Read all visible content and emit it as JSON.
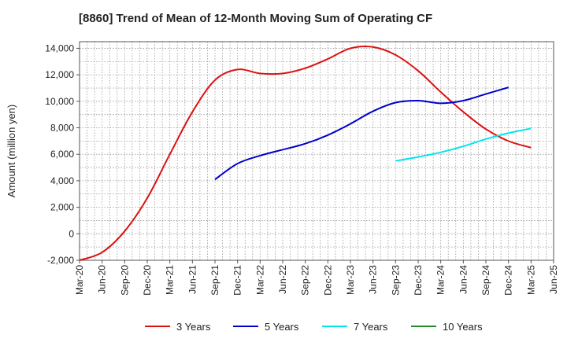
{
  "chart_data": {
    "type": "line",
    "title": "[8860]  Trend of Mean of 12-Month Moving Sum of Operating CF",
    "xlabel": "",
    "ylabel": "Amount (million yen)",
    "ylim": [
      -2000,
      14500
    ],
    "yticks": [
      -2000,
      0,
      2000,
      4000,
      6000,
      8000,
      10000,
      12000,
      14000
    ],
    "ytick_labels": [
      "-2,000",
      "0",
      "2,000",
      "4,000",
      "6,000",
      "8,000",
      "10,000",
      "12,000",
      "14,000"
    ],
    "x_categories": [
      "Mar-20",
      "Jun-20",
      "Sep-20",
      "Dec-20",
      "Mar-21",
      "Jun-21",
      "Sep-21",
      "Dec-21",
      "Mar-22",
      "Jun-22",
      "Sep-22",
      "Dec-22",
      "Mar-23",
      "Jun-23",
      "Sep-23",
      "Dec-23",
      "Mar-24",
      "Jun-24",
      "Sep-24",
      "Dec-24",
      "Mar-25",
      "Jun-25"
    ],
    "grid": true,
    "legend_position": "bottom",
    "series": [
      {
        "name": "3 Years",
        "color": "#dd1111",
        "start_index": 0,
        "values": [
          -2000,
          -1400,
          200,
          2700,
          6000,
          9200,
          11600,
          12400,
          12100,
          12100,
          12500,
          13200,
          14000,
          14100,
          13500,
          12300,
          10700,
          9200,
          7900,
          7000,
          6500
        ]
      },
      {
        "name": "5 Years",
        "color": "#0000cc",
        "start_index": 6,
        "values": [
          4100,
          5300,
          5900,
          6350,
          6800,
          7450,
          8300,
          9250,
          9900,
          10050,
          9850,
          10050,
          10550,
          11050
        ]
      },
      {
        "name": "7 Years",
        "color": "#00e5ee",
        "start_index": 14,
        "values": [
          5500,
          5800,
          6150,
          6600,
          7150,
          7600,
          7950
        ]
      },
      {
        "name": "10 Years",
        "color": "#228b22",
        "start_index": 0,
        "values": []
      }
    ]
  }
}
